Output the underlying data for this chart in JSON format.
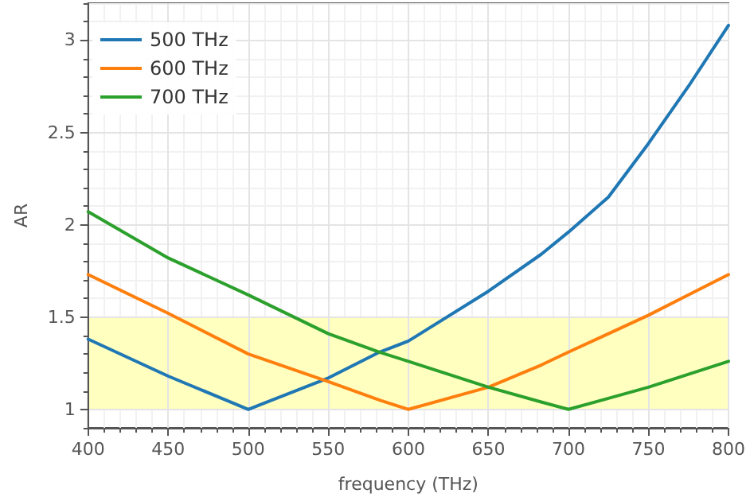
{
  "chart_data": {
    "type": "line",
    "xlabel": "frequency (THz)",
    "ylabel": "AR",
    "x": [
      400,
      450,
      500,
      550,
      582,
      600,
      650,
      683,
      700,
      725,
      750,
      775,
      800
    ],
    "series": [
      {
        "name": "500 THz",
        "color": "#1f77b4",
        "values": [
          1.38,
          1.18,
          1.0,
          1.17,
          1.31,
          1.37,
          1.64,
          1.84,
          1.96,
          2.15,
          2.44,
          2.75,
          3.08
        ]
      },
      {
        "name": "600 THz",
        "color": "#ff7f0e",
        "values": [
          1.73,
          1.52,
          1.3,
          1.15,
          1.05,
          1.0,
          1.12,
          1.24,
          1.31,
          1.41,
          1.51,
          1.62,
          1.73
        ]
      },
      {
        "name": "700 THz",
        "color": "#2ca02c",
        "values": [
          2.07,
          1.82,
          1.62,
          1.41,
          1.31,
          1.26,
          1.12,
          1.04,
          1.0,
          1.06,
          1.12,
          1.19,
          1.26
        ]
      }
    ],
    "xlim": [
      400,
      800
    ],
    "xticks": [
      400,
      450,
      500,
      550,
      600,
      650,
      700,
      750,
      800
    ],
    "ylim": [
      0.9,
      3.2
    ],
    "yticks": [
      1,
      1.5,
      2,
      2.5,
      3
    ],
    "bands": [
      {
        "axis": "y",
        "from": 1,
        "to": 1.5,
        "color": "#ffffc0"
      }
    ],
    "grid": true,
    "legend": "top left",
    "marker": "none",
    "line_style": "solid"
  }
}
